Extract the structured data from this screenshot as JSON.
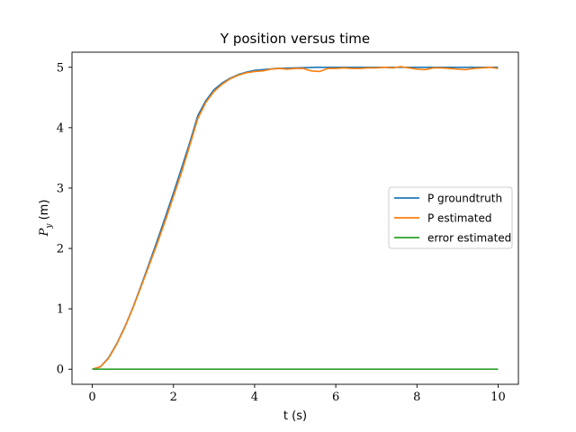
{
  "chart_data": {
    "type": "line",
    "title": "Y position versus time",
    "xlabel": "t (s)",
    "ylabel_main": "P",
    "ylabel_sub": "y",
    "ylabel_unit": " (m)",
    "xlim": [
      -0.5,
      10.5
    ],
    "ylim": [
      -0.25,
      5.25
    ],
    "xticks": [
      0,
      2,
      4,
      6,
      8,
      10
    ],
    "yticks": [
      0,
      1,
      2,
      3,
      4,
      5
    ],
    "grid": false,
    "legend_position": "center-right",
    "series": [
      {
        "name": "P groundtruth",
        "color": "#1f77b4",
        "x": [
          0,
          0.2,
          0.4,
          0.6,
          0.8,
          1.0,
          1.2,
          1.4,
          1.6,
          1.8,
          2.0,
          2.2,
          2.4,
          2.6,
          2.8,
          3.0,
          3.2,
          3.4,
          3.6,
          3.8,
          4.0,
          4.5,
          5.0,
          5.5,
          6.0,
          6.5,
          7.0,
          7.5,
          8.0,
          8.5,
          9.0,
          9.5,
          10.0
        ],
        "y": [
          0,
          0.04,
          0.19,
          0.42,
          0.7,
          1.02,
          1.38,
          1.75,
          2.13,
          2.52,
          2.92,
          3.33,
          3.75,
          4.2,
          4.45,
          4.63,
          4.74,
          4.82,
          4.88,
          4.92,
          4.95,
          4.98,
          4.99,
          5.0,
          5.0,
          5.0,
          5.0,
          5.0,
          5.0,
          5.0,
          5.0,
          5.0,
          5.0
        ]
      },
      {
        "name": "P estimated",
        "color": "#ff7f0e",
        "x": [
          0,
          0.2,
          0.4,
          0.6,
          0.8,
          1.0,
          1.2,
          1.4,
          1.6,
          1.8,
          2.0,
          2.2,
          2.4,
          2.6,
          2.8,
          3.0,
          3.2,
          3.4,
          3.6,
          3.8,
          4.0,
          4.2,
          4.4,
          4.6,
          4.8,
          5.0,
          5.2,
          5.4,
          5.6,
          5.8,
          6.0,
          6.2,
          6.4,
          6.6,
          6.8,
          7.0,
          7.2,
          7.4,
          7.6,
          7.8,
          8.0,
          8.2,
          8.4,
          8.6,
          8.8,
          9.0,
          9.2,
          9.4,
          9.6,
          9.8,
          10.0
        ],
        "y": [
          0,
          0.04,
          0.18,
          0.41,
          0.69,
          1.01,
          1.36,
          1.72,
          2.08,
          2.46,
          2.86,
          3.26,
          3.7,
          4.15,
          4.42,
          4.6,
          4.72,
          4.81,
          4.87,
          4.91,
          4.93,
          4.94,
          4.97,
          4.98,
          4.97,
          4.98,
          4.98,
          4.94,
          4.93,
          4.98,
          4.98,
          4.99,
          4.98,
          4.98,
          4.99,
          4.99,
          5.0,
          4.99,
          5.01,
          4.99,
          4.97,
          4.96,
          4.99,
          4.99,
          4.98,
          4.97,
          4.96,
          4.98,
          4.99,
          5.0,
          4.98
        ]
      },
      {
        "name": "error estimated",
        "color": "#2ca02c",
        "x": [
          0,
          2,
          4,
          6,
          8,
          10
        ],
        "y": [
          0,
          0,
          0,
          0,
          0,
          0
        ]
      }
    ]
  }
}
